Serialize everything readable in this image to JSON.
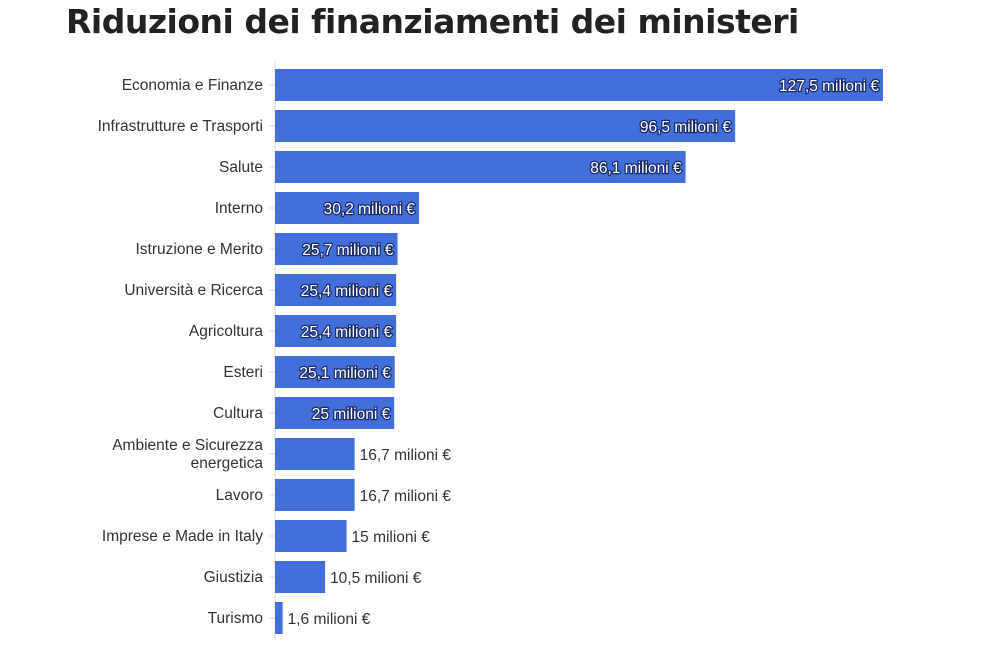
{
  "chart_data": {
    "type": "bar",
    "orientation": "horizontal",
    "title": "Riduzioni dei finanziamenti dei ministeri",
    "categories": [
      "Economia e Finanze",
      "Infrastrutture e Trasporti",
      "Salute",
      "Interno",
      "Istruzione e Merito",
      "Università e Ricerca",
      "Agricoltura",
      "Esteri",
      "Cultura",
      "Ambiente e Sicurezza energetica",
      "Lavoro",
      "Imprese e Made in Italy",
      "Giustizia",
      "Turismo"
    ],
    "values": [
      127.5,
      96.5,
      86.1,
      30.2,
      25.7,
      25.4,
      25.4,
      25.1,
      25,
      16.7,
      16.7,
      15,
      10.5,
      1.6
    ],
    "data_labels": [
      "127,5 milioni €",
      "96,5 milioni €",
      "86,1 milioni €",
      "30,2 milioni €",
      "25,7 milioni €",
      "25,4 milioni €",
      "25,4 milioni €",
      "25,1 milioni €",
      "25 milioni €",
      "16,7 milioni €",
      "16,7 milioni €",
      "15 milioni €",
      "10,5 milioni €",
      "1,6 milioni €"
    ],
    "xlabel": "",
    "ylabel": "",
    "xlim": [
      0,
      127.5
    ],
    "grid": false,
    "bar_color": "#416ed9"
  }
}
